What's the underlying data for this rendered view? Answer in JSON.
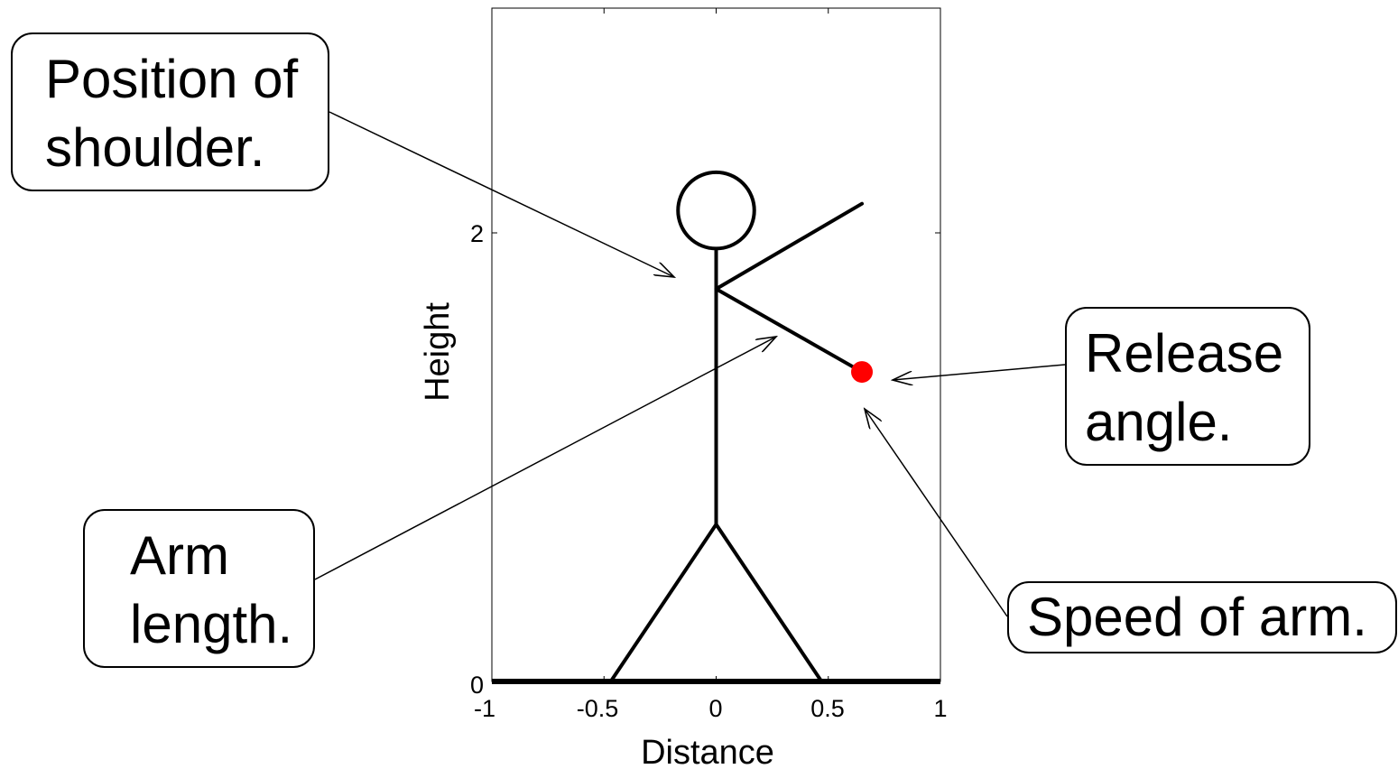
{
  "chart_data": {
    "type": "diagram",
    "xlabel": "Distance",
    "ylabel": "Height",
    "xlim": [
      -1,
      1
    ],
    "ylim": [
      0,
      3
    ],
    "x_ticks": [
      "-1",
      "-0.5",
      "0",
      "0.5",
      "1"
    ],
    "x_tick_values": [
      -1,
      -0.5,
      0,
      0.5,
      1
    ],
    "y_ticks": [
      "0",
      "2"
    ],
    "y_tick_values": [
      0,
      2
    ],
    "figure": {
      "head_center": [
        0,
        2.1
      ],
      "head_radius": 0.17,
      "neck": [
        0,
        1.92
      ],
      "shoulder": [
        0,
        1.75
      ],
      "hip": [
        0,
        0.7
      ],
      "left_foot": [
        -0.47,
        0
      ],
      "right_foot": [
        0.47,
        0
      ],
      "upper_arm_end": [
        0.65,
        2.13
      ],
      "lower_arm_end": [
        0.65,
        1.38
      ]
    },
    "release_point": {
      "x": 0.65,
      "y": 1.38,
      "color": "#ff0000"
    },
    "ground_color": "#000000"
  },
  "callouts": {
    "shoulder": {
      "line1": "Position of",
      "line2": "shoulder."
    },
    "arm_length": {
      "line1": "Arm",
      "line2": "length."
    },
    "release": {
      "line1": "Release",
      "line2": "angle."
    },
    "speed": {
      "line1": "Speed of arm."
    }
  }
}
